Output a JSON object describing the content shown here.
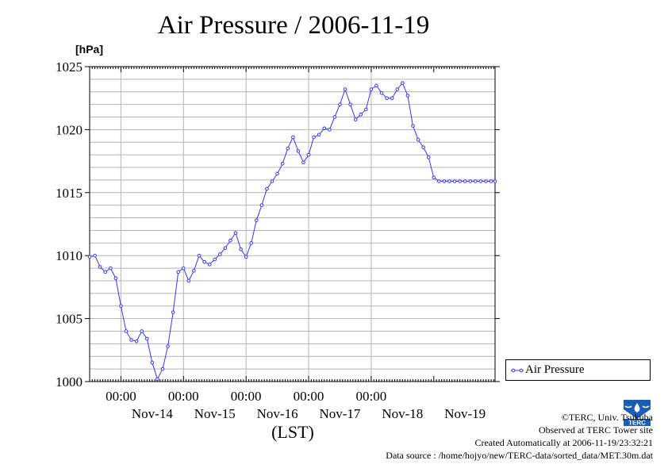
{
  "chart_data": {
    "type": "line",
    "title": "Air Pressure / 2006-11-19",
    "ylabel": "[hPa]",
    "xlabel": "(LST)",
    "ylim": [
      1000,
      1025
    ],
    "yticks": [
      1000,
      1005,
      1010,
      1015,
      1020,
      1025
    ],
    "y_tick_labels": [
      "1000",
      "1005",
      "1010",
      "1015",
      "1020",
      "1025"
    ],
    "xlim": [
      "2006-11-13 12:00",
      "2006-11-19 23:30"
    ],
    "x_ticks": [
      "2006-11-14 00:00",
      "2006-11-15 00:00",
      "2006-11-16 00:00",
      "2006-11-17 00:00",
      "2006-11-18 00:00"
    ],
    "x_tick_time_labels": [
      "00:00",
      "00:00",
      "00:00",
      "00:00",
      "00:00"
    ],
    "x_day_labels": [
      "Nov-14",
      "Nov-15",
      "Nov-16",
      "Nov-17",
      "Nov-18",
      "Nov-19"
    ],
    "grid": true,
    "legend_position": "right",
    "series": [
      {
        "name": "Air Pressure",
        "color": "#3333ff",
        "x": [
          "2006-11-13 12:00",
          "2006-11-13 14:00",
          "2006-11-13 16:00",
          "2006-11-13 18:00",
          "2006-11-13 20:00",
          "2006-11-13 22:00",
          "2006-11-14 00:00",
          "2006-11-14 02:00",
          "2006-11-14 04:00",
          "2006-11-14 06:00",
          "2006-11-14 08:00",
          "2006-11-14 10:00",
          "2006-11-14 12:00",
          "2006-11-14 14:00",
          "2006-11-14 16:00",
          "2006-11-14 18:00",
          "2006-11-14 20:00",
          "2006-11-14 22:00",
          "2006-11-15 00:00",
          "2006-11-15 02:00",
          "2006-11-15 04:00",
          "2006-11-15 06:00",
          "2006-11-15 08:00",
          "2006-11-15 10:00",
          "2006-11-15 12:00",
          "2006-11-15 14:00",
          "2006-11-15 16:00",
          "2006-11-15 18:00",
          "2006-11-15 20:00",
          "2006-11-15 22:00",
          "2006-11-16 00:00",
          "2006-11-16 02:00",
          "2006-11-16 04:00",
          "2006-11-16 06:00",
          "2006-11-16 08:00",
          "2006-11-16 10:00",
          "2006-11-16 12:00",
          "2006-11-16 14:00",
          "2006-11-16 16:00",
          "2006-11-16 18:00",
          "2006-11-16 20:00",
          "2006-11-16 22:00",
          "2006-11-17 00:00",
          "2006-11-17 02:00",
          "2006-11-17 04:00",
          "2006-11-17 06:00",
          "2006-11-17 08:00",
          "2006-11-17 10:00",
          "2006-11-17 12:00",
          "2006-11-17 14:00",
          "2006-11-17 16:00",
          "2006-11-17 18:00",
          "2006-11-17 20:00",
          "2006-11-17 22:00",
          "2006-11-18 00:00",
          "2006-11-18 02:00",
          "2006-11-18 04:00",
          "2006-11-18 06:00",
          "2006-11-18 08:00",
          "2006-11-18 10:00",
          "2006-11-18 12:00",
          "2006-11-18 14:00",
          "2006-11-18 16:00",
          "2006-11-18 18:00",
          "2006-11-18 20:00",
          "2006-11-18 22:00",
          "2006-11-19 00:00",
          "2006-11-19 02:00",
          "2006-11-19 04:00",
          "2006-11-19 06:00",
          "2006-11-19 08:00",
          "2006-11-19 10:00",
          "2006-11-19 12:00",
          "2006-11-19 14:00",
          "2006-11-19 16:00",
          "2006-11-19 18:00",
          "2006-11-19 20:00",
          "2006-11-19 22:00",
          "2006-11-19 23:30"
        ],
        "values": [
          1009.9,
          1010.0,
          1009.1,
          1008.7,
          1009.0,
          1008.2,
          1006.0,
          1004.0,
          1003.3,
          1003.2,
          1004.0,
          1003.4,
          1001.5,
          1000.2,
          1001.0,
          1002.8,
          1005.5,
          1008.7,
          1009.0,
          1008.0,
          1008.8,
          1010.0,
          1009.5,
          1009.3,
          1009.7,
          1010.1,
          1010.6,
          1011.2,
          1011.8,
          1010.5,
          1009.9,
          1011.0,
          1012.8,
          1014.0,
          1015.3,
          1015.9,
          1016.5,
          1017.3,
          1018.5,
          1019.4,
          1018.3,
          1017.4,
          1018.0,
          1019.4,
          1019.6,
          1020.1,
          1020.0,
          1021.0,
          1022.0,
          1023.2,
          1022.0,
          1020.8,
          1021.2,
          1021.6,
          1023.2,
          1023.5,
          1022.9,
          1022.5,
          1022.5,
          1023.2,
          1023.7,
          1022.7,
          1020.3,
          1019.2,
          1018.6,
          1017.8,
          1016.2,
          1015.9,
          1015.9,
          1015.9,
          1015.9,
          1015.9,
          1015.9,
          1015.9,
          1015.9,
          1015.9,
          1015.9,
          1015.9,
          1015.9
        ]
      }
    ]
  },
  "legend": {
    "label": "Air Pressure"
  },
  "credits": {
    "line1": "©TERC, Univ. Tsukuba",
    "line2": "Observed at TERC Tower site",
    "line3": "Created Automatically at 2006-11-19/23:32:21",
    "line4": "Data source : /home/hojyo/new/TERC-data/sorted_data/MET.30m.dat"
  },
  "logo_text": "TERC"
}
